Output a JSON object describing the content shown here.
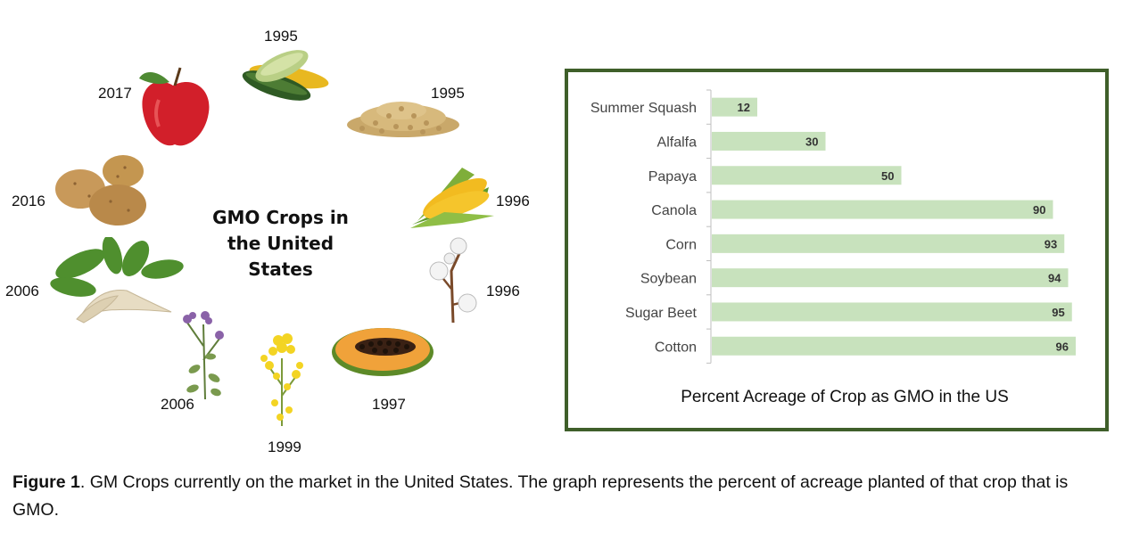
{
  "figure": {
    "center_title": "GMO Crops in the United States",
    "crops": [
      {
        "name": "squash-icon",
        "year": "1995"
      },
      {
        "name": "soybean-icon",
        "year": "1995"
      },
      {
        "name": "corn-icon",
        "year": "1996"
      },
      {
        "name": "cotton-icon",
        "year": "1996"
      },
      {
        "name": "papaya-icon",
        "year": "1997"
      },
      {
        "name": "canola-icon",
        "year": "1999"
      },
      {
        "name": "alfalfa-icon",
        "year": "2006"
      },
      {
        "name": "sugar-beet-icon",
        "year": "2006"
      },
      {
        "name": "potato-icon",
        "year": "2016"
      },
      {
        "name": "apple-icon",
        "year": "2017"
      }
    ]
  },
  "chart_data": {
    "type": "bar",
    "orientation": "horizontal",
    "title": "",
    "xlabel": "Percent Acreage of Crop as GMO in the US",
    "ylabel": "",
    "categories": [
      "Summer Squash",
      "Alfalfa",
      "Papaya",
      "Canola",
      "Corn",
      "Soybean",
      "Sugar Beet",
      "Cotton"
    ],
    "values": [
      12,
      30,
      50,
      90,
      93,
      94,
      95,
      96
    ],
    "xlim": [
      0,
      100
    ],
    "bar_color": "#c8e2bd",
    "border_color": "#3f5f2a",
    "data_labels": true,
    "grid": false,
    "legend": "none"
  },
  "caption": {
    "label": "Figure 1",
    "text": ". GM Crops currently on the market in the United States. The graph represents the percent of acreage planted of that crop that is GMO."
  }
}
